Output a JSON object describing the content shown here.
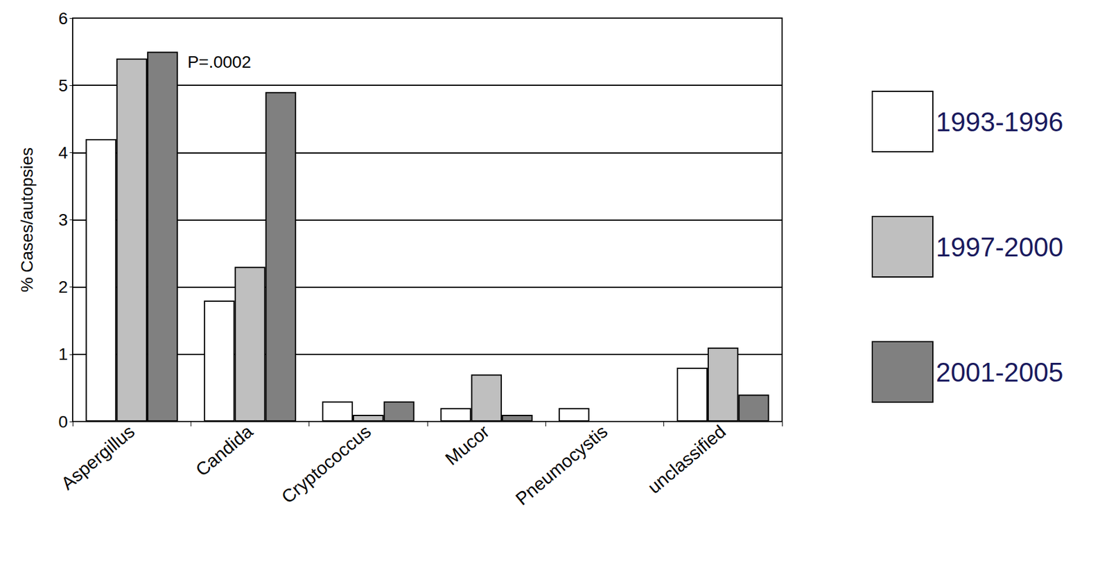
{
  "chart_data": {
    "type": "bar",
    "y_label": "% Cases/autopsies",
    "categories": [
      "Aspergillus",
      "Candida",
      "Cryptococcus",
      "Mucor",
      "Pneumocystis",
      "unclassified"
    ],
    "series": [
      {
        "name": "1993-1996",
        "color": "#ffffff",
        "values": [
          4.2,
          1.8,
          0.3,
          0.2,
          0.2,
          0.8
        ]
      },
      {
        "name": "1997-2000",
        "color": "#bfbfbf",
        "values": [
          5.4,
          2.3,
          0.1,
          0.7,
          0,
          1.1
        ]
      },
      {
        "name": "2001-2005",
        "color": "#808080",
        "values": [
          5.5,
          4.9,
          0.3,
          0.1,
          0,
          0.4
        ]
      }
    ],
    "annotations": [
      {
        "text": "P=.0002",
        "category": "Candida",
        "y": 5.35
      }
    ],
    "ylim": [
      0,
      6
    ],
    "yticks": [
      0,
      1,
      2,
      3,
      4,
      5,
      6
    ],
    "grid": true,
    "legend": "right"
  }
}
